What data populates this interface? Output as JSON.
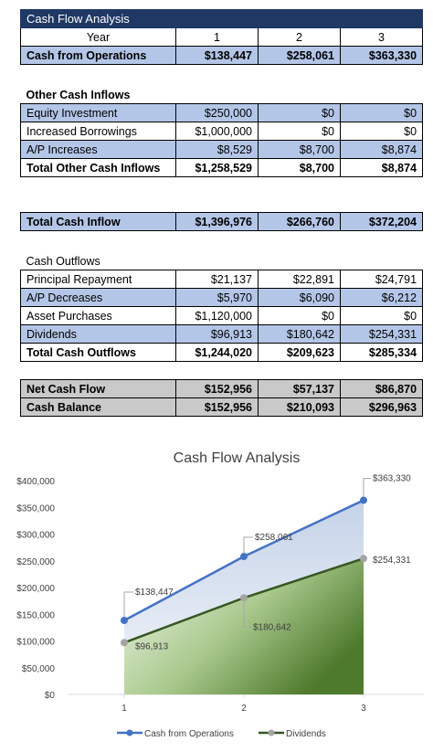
{
  "sheet": {
    "title": "Cash Flow Analysis",
    "year_label": "Year",
    "years": [
      "1",
      "2",
      "3"
    ],
    "operations": {
      "label": "Cash from Operations",
      "values": [
        "$138,447",
        "$258,061",
        "$363,330"
      ]
    },
    "other_inflows_heading": "Other Cash Inflows",
    "other_inflows": [
      {
        "label": "Equity Investment",
        "values": [
          "$250,000",
          "$0",
          "$0"
        ]
      },
      {
        "label": "Increased Borrowings",
        "values": [
          "$1,000,000",
          "$0",
          "$0"
        ]
      },
      {
        "label": "A/P Increases",
        "values": [
          "$8,529",
          "$8,700",
          "$8,874"
        ]
      }
    ],
    "total_other_inflows": {
      "label": "Total Other Cash Inflows",
      "values": [
        "$1,258,529",
        "$8,700",
        "$8,874"
      ]
    },
    "total_inflow": {
      "label": "Total Cash Inflow",
      "values": [
        "$1,396,976",
        "$266,760",
        "$372,204"
      ]
    },
    "outflows_heading": "Cash Outflows",
    "outflows": [
      {
        "label": "Principal Repayment",
        "values": [
          "$21,137",
          "$22,891",
          "$24,791"
        ]
      },
      {
        "label": "A/P Decreases",
        "values": [
          "$5,970",
          "$6,090",
          "$6,212"
        ]
      },
      {
        "label": "Asset Purchases",
        "values": [
          "$1,120,000",
          "$0",
          "$0"
        ]
      },
      {
        "label": "Dividends",
        "values": [
          "$96,913",
          "$180,642",
          "$254,331"
        ]
      }
    ],
    "total_outflows": {
      "label": "Total Cash Outflows",
      "values": [
        "$1,244,020",
        "$209,623",
        "$285,334"
      ]
    },
    "net_cash_flow": {
      "label": "Net Cash Flow",
      "values": [
        "$152,956",
        "$57,137",
        "$86,870"
      ]
    },
    "cash_balance": {
      "label": "Cash Balance",
      "values": [
        "$152,956",
        "$210,093",
        "$296,963"
      ]
    }
  },
  "chart_data": {
    "type": "area",
    "title": "Cash Flow Analysis",
    "categories": [
      "1",
      "2",
      "3"
    ],
    "ylim": [
      0,
      400000
    ],
    "yticks": [
      0,
      50000,
      100000,
      150000,
      200000,
      250000,
      300000,
      350000,
      400000
    ],
    "ytick_labels": [
      "$0",
      "$50,000",
      "$100,000",
      "$150,000",
      "$200,000",
      "$250,000",
      "$300,000",
      "$350,000",
      "$400,000"
    ],
    "grid": false,
    "legend": "bottom",
    "series": [
      {
        "name": "Cash from Operations",
        "values": [
          138447,
          258061,
          363330
        ],
        "labels": [
          "$138,447",
          "$258,061",
          "$363,330"
        ],
        "color": "#4472c4"
      },
      {
        "name": "Dividends",
        "values": [
          96913,
          180642,
          254331
        ],
        "labels": [
          "$96,913",
          "$180,642",
          "$254,331"
        ],
        "color": "#375623"
      }
    ]
  }
}
